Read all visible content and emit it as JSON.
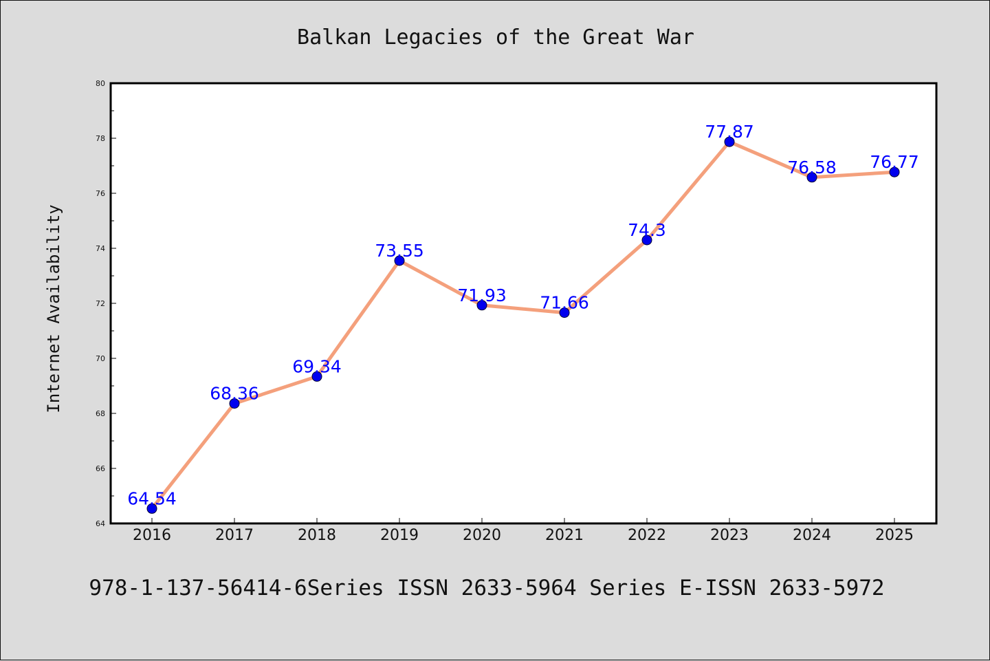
{
  "chart_data": {
    "type": "line",
    "title": "Balkan Legacies of the Great War",
    "ylabel": "Internet Availability",
    "xlabel": "",
    "x": [
      "2016",
      "2017",
      "2018",
      "2019",
      "2020",
      "2021",
      "2022",
      "2023",
      "2024",
      "2025"
    ],
    "values": [
      64.54,
      68.36,
      69.34,
      73.55,
      71.93,
      71.66,
      74.3,
      77.87,
      76.58,
      76.77
    ],
    "data_labels": [
      "64.54",
      "68.36",
      "69.34",
      "73.55",
      "71.93",
      "71.66",
      "74.3",
      "77.87",
      "76.58",
      "76.77"
    ],
    "ylim": [
      64,
      80
    ],
    "yticks": [
      "64",
      "66",
      "68",
      "70",
      "72",
      "74",
      "76",
      "78",
      "80"
    ],
    "grid": false,
    "legend": "none",
    "line_color": "#f4a07c",
    "marker_color": "#0000ee",
    "label_color": "#0000ff"
  },
  "footer": "978-1-137-56414-6Series ISSN 2633-5964 Series E-ISSN 2633-5972"
}
